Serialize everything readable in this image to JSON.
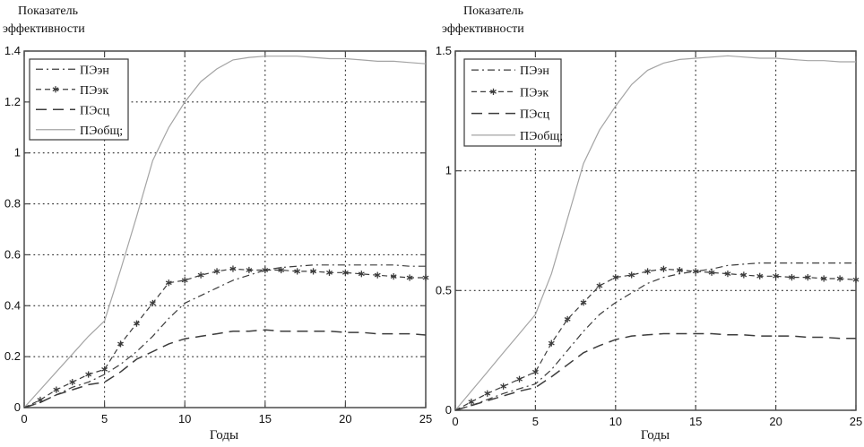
{
  "figure": {
    "background": "#ffffff",
    "grid_color": "#2f2f2f",
    "axis_color": "#4a4a4a",
    "dark_series_color": "#3c3c3c",
    "gray_series_color": "#a4a4a4"
  },
  "chart_data": [
    {
      "type": "line",
      "title": "Показатель эффективности",
      "title_line1": "Показатель",
      "title_line2": "эффективности",
      "xlabel": "Годы",
      "xlim": [
        0,
        25
      ],
      "ylim": [
        0,
        1.4
      ],
      "xticks": [
        0,
        5,
        10,
        15,
        20,
        25
      ],
      "xtick_labels": [
        "0",
        "5",
        "10",
        "15",
        "20",
        "25"
      ],
      "yticks": [
        0,
        0.2,
        0.4,
        0.6,
        0.8,
        1,
        1.2,
        1.4
      ],
      "ytick_labels": [
        "0",
        "0.2",
        "0.4",
        "0.6",
        "0.8",
        "1",
        "1.2",
        "1.4"
      ],
      "grid": true,
      "legend_position": "top-left",
      "x": [
        0,
        1,
        2,
        3,
        4,
        5,
        6,
        7,
        8,
        9,
        10,
        11,
        12,
        13,
        14,
        15,
        16,
        17,
        18,
        19,
        20,
        21,
        22,
        23,
        24,
        25
      ],
      "series": [
        {
          "id": "pe-en",
          "label": "ПЭэн",
          "style": "dashdot",
          "color": "#3c3c3c",
          "values": [
            0,
            0.02,
            0.05,
            0.08,
            0.1,
            0.13,
            0.17,
            0.22,
            0.28,
            0.35,
            0.41,
            0.44,
            0.47,
            0.5,
            0.52,
            0.54,
            0.55,
            0.555,
            0.56,
            0.56,
            0.56,
            0.56,
            0.56,
            0.56,
            0.555,
            0.555
          ]
        },
        {
          "id": "pe-ek",
          "label": "ПЭэк",
          "style": "dashstar",
          "marker": "star",
          "color": "#3c3c3c",
          "values": [
            0,
            0.03,
            0.07,
            0.1,
            0.13,
            0.15,
            0.25,
            0.33,
            0.41,
            0.49,
            0.5,
            0.52,
            0.535,
            0.545,
            0.54,
            0.54,
            0.54,
            0.535,
            0.535,
            0.53,
            0.53,
            0.525,
            0.52,
            0.515,
            0.51,
            0.51
          ]
        },
        {
          "id": "pe-sc",
          "label": "ПЭсц",
          "style": "longdash",
          "color": "#3c3c3c",
          "values": [
            0,
            0.02,
            0.05,
            0.07,
            0.09,
            0.1,
            0.14,
            0.19,
            0.22,
            0.25,
            0.27,
            0.28,
            0.29,
            0.3,
            0.3,
            0.305,
            0.3,
            0.3,
            0.3,
            0.3,
            0.295,
            0.295,
            0.29,
            0.29,
            0.29,
            0.285
          ]
        },
        {
          "id": "pe-obshch",
          "label": "ПЭобщ;",
          "style": "solid",
          "color": "#a4a4a4",
          "values": [
            0,
            0.07,
            0.14,
            0.21,
            0.28,
            0.34,
            0.54,
            0.75,
            0.97,
            1.1,
            1.2,
            1.28,
            1.33,
            1.365,
            1.375,
            1.38,
            1.38,
            1.38,
            1.375,
            1.37,
            1.37,
            1.365,
            1.36,
            1.36,
            1.355,
            1.35
          ]
        }
      ]
    },
    {
      "type": "line",
      "title": "Показатель эффективности",
      "title_line1": "Показатель",
      "title_line2": "эффективности",
      "xlabel": "Годы",
      "xlim": [
        0,
        25
      ],
      "ylim": [
        0,
        1.5
      ],
      "xticks": [
        0,
        5,
        10,
        15,
        20,
        25
      ],
      "xtick_labels": [
        "0",
        "5",
        "10",
        "15",
        "20",
        "25"
      ],
      "yticks": [
        0,
        0.5,
        1,
        1.5
      ],
      "ytick_labels": [
        "0",
        "0.5",
        "1",
        "1.5"
      ],
      "grid": true,
      "legend_position": "top-left",
      "x": [
        0,
        1,
        2,
        3,
        4,
        5,
        6,
        7,
        8,
        9,
        10,
        11,
        12,
        13,
        14,
        15,
        16,
        17,
        18,
        19,
        20,
        21,
        22,
        23,
        24,
        25
      ],
      "series": [
        {
          "id": "pe-en",
          "label": "ПЭэн",
          "style": "dashdot",
          "color": "#3c3c3c",
          "values": [
            0,
            0.02,
            0.045,
            0.07,
            0.09,
            0.11,
            0.17,
            0.25,
            0.33,
            0.4,
            0.45,
            0.49,
            0.53,
            0.555,
            0.57,
            0.58,
            0.59,
            0.605,
            0.61,
            0.615,
            0.615,
            0.615,
            0.615,
            0.615,
            0.615,
            0.615
          ]
        },
        {
          "id": "pe-ek",
          "label": "ПЭэк",
          "style": "dashstar",
          "marker": "star",
          "color": "#3c3c3c",
          "values": [
            0,
            0.035,
            0.07,
            0.1,
            0.13,
            0.16,
            0.28,
            0.38,
            0.45,
            0.52,
            0.555,
            0.565,
            0.58,
            0.59,
            0.585,
            0.58,
            0.575,
            0.57,
            0.565,
            0.56,
            0.56,
            0.555,
            0.555,
            0.55,
            0.55,
            0.545
          ]
        },
        {
          "id": "pe-sc",
          "label": "ПЭсц",
          "style": "longdash",
          "color": "#3c3c3c",
          "values": [
            0,
            0.02,
            0.04,
            0.06,
            0.08,
            0.095,
            0.14,
            0.19,
            0.24,
            0.27,
            0.295,
            0.31,
            0.315,
            0.32,
            0.32,
            0.32,
            0.32,
            0.315,
            0.315,
            0.31,
            0.31,
            0.31,
            0.305,
            0.305,
            0.3,
            0.3
          ]
        },
        {
          "id": "pe-obshch",
          "label": "ПЭобщ;",
          "style": "solid",
          "color": "#a4a4a4",
          "values": [
            0,
            0.08,
            0.16,
            0.24,
            0.32,
            0.4,
            0.57,
            0.8,
            1.03,
            1.17,
            1.27,
            1.36,
            1.42,
            1.45,
            1.465,
            1.47,
            1.475,
            1.48,
            1.475,
            1.47,
            1.47,
            1.465,
            1.46,
            1.46,
            1.455,
            1.455
          ]
        }
      ]
    }
  ]
}
